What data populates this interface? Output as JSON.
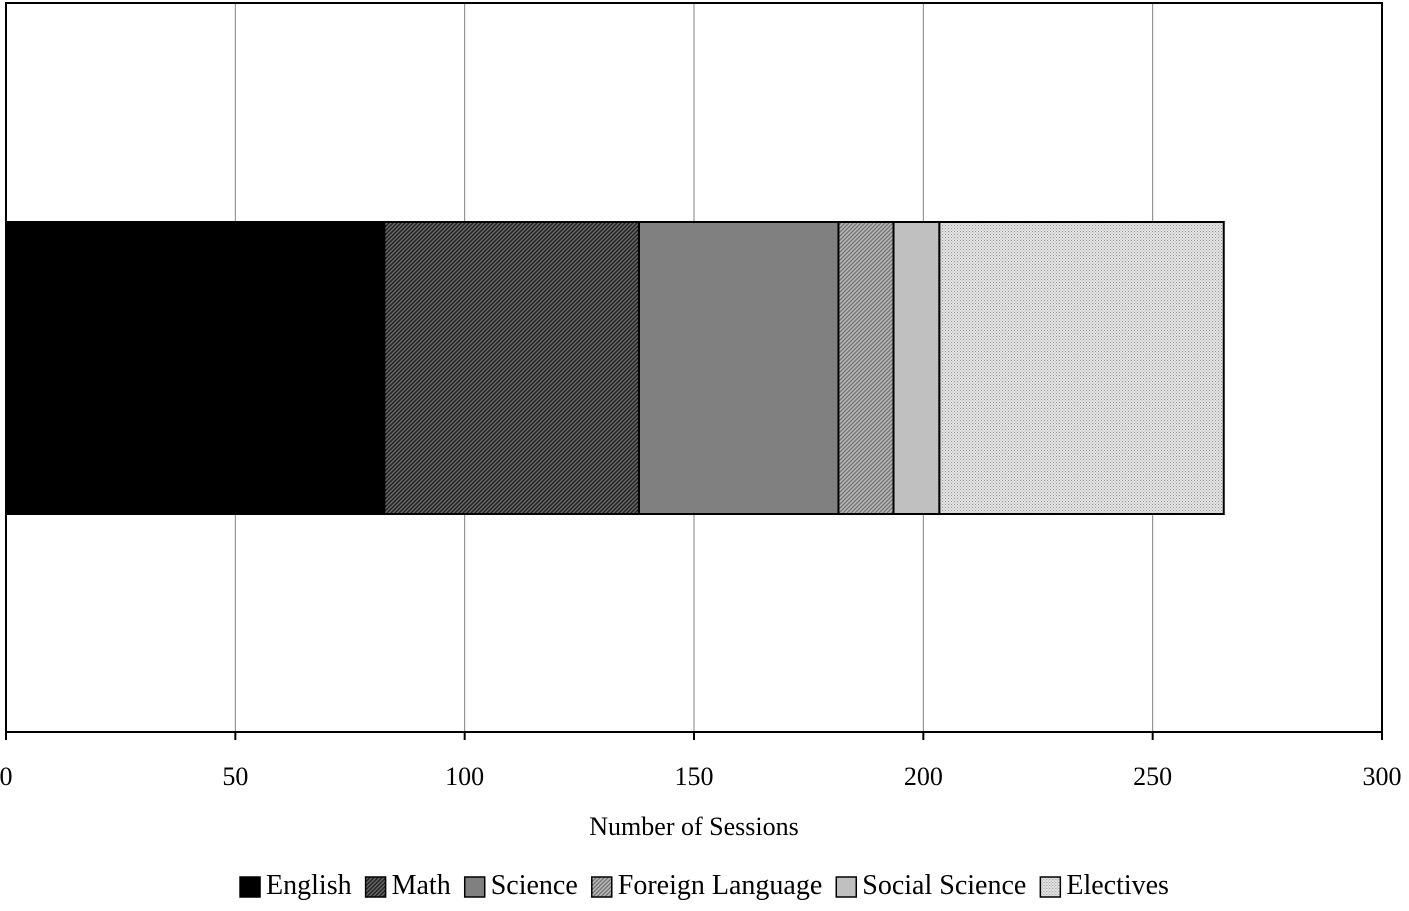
{
  "chart_data": {
    "type": "bar",
    "orientation": "horizontal",
    "stacked": true,
    "title": "",
    "xlabel": "Number of Sessions",
    "ylabel": "",
    "xlim": [
      0,
      300
    ],
    "x_ticks": [
      0,
      50,
      100,
      150,
      200,
      250,
      300
    ],
    "tick_labels": [
      "0",
      "50",
      "100",
      "150",
      "200",
      "250",
      "300"
    ],
    "grid": "vertical",
    "legend_position": "bottom",
    "categories": [
      ""
    ],
    "series": [
      {
        "name": "English",
        "values": [
          82.5
        ],
        "color": "#000000",
        "pattern": "solid"
      },
      {
        "name": "Math",
        "values": [
          55.5
        ],
        "color": "#3c3c3c",
        "pattern": "diagonal-dense"
      },
      {
        "name": "Science",
        "values": [
          43.5
        ],
        "color": "#808080",
        "pattern": "solid"
      },
      {
        "name": "Foreign Language",
        "values": [
          12
        ],
        "color": "#a0a0a0",
        "pattern": "diagonal"
      },
      {
        "name": "Social Science",
        "values": [
          10
        ],
        "color": "#c0c0c0",
        "pattern": "solid"
      },
      {
        "name": "Electives",
        "values": [
          62
        ],
        "color": "#dcdcdc",
        "pattern": "fine-dots"
      }
    ]
  }
}
